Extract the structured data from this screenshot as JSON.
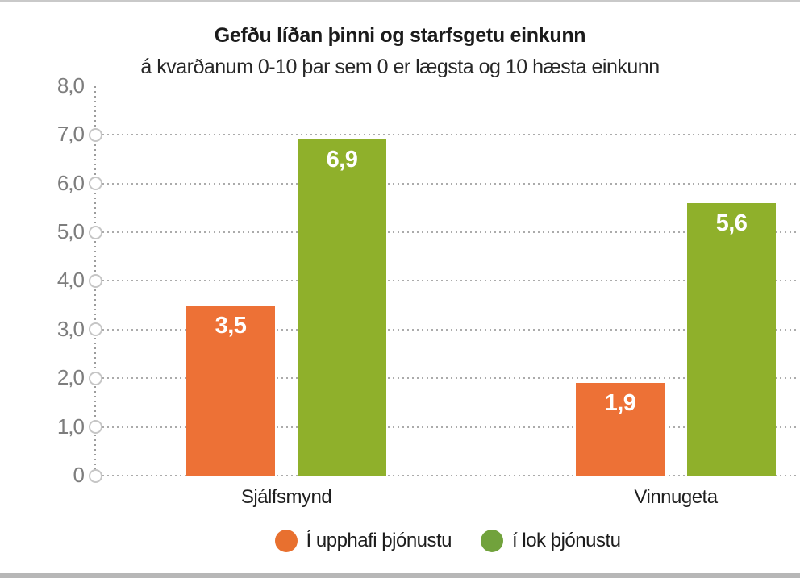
{
  "page": {
    "background": "#ffffff",
    "top_border_color": "#c9c9c9",
    "bottom_border_color": "#b7b7b7"
  },
  "chart_data": {
    "type": "bar",
    "title": "Gefðu líðan þinni og starfsgetu einkunn",
    "subtitle": "á kvarðanum 0-10 þar sem 0 er lægsta og 10 hæsta einkunn",
    "categories": [
      "Sjálfsmynd",
      "Vinnugeta"
    ],
    "series": [
      {
        "name": "Í upphafi þjónustu",
        "color": "#ed7136",
        "legend_color": "#e8702f",
        "values": [
          3.5,
          1.9
        ],
        "value_labels": [
          "3,5",
          "1,9"
        ]
      },
      {
        "name": "í lok þjónustu",
        "color": "#8fb02b",
        "legend_color": "#71a23c",
        "values": [
          6.9,
          5.6
        ],
        "value_labels": [
          "6,9",
          "5,6"
        ]
      }
    ],
    "ylim": [
      0,
      8
    ],
    "yticks": [
      0,
      1,
      2,
      3,
      4,
      5,
      6,
      7,
      8
    ],
    "ytick_labels": [
      "0",
      "1,0",
      "2,0",
      "3,0",
      "4,0",
      "5,0",
      "6,0",
      "7,0",
      "8,0"
    ],
    "gridlines_at": [
      0,
      1,
      2,
      3,
      4,
      5,
      6,
      7
    ],
    "grid_style": "dotted horizontal with open circle ticks on y-axis",
    "legend_position": "bottom",
    "value_label_color": "#ffffff",
    "axis_label_color": "#7d7d7d"
  }
}
